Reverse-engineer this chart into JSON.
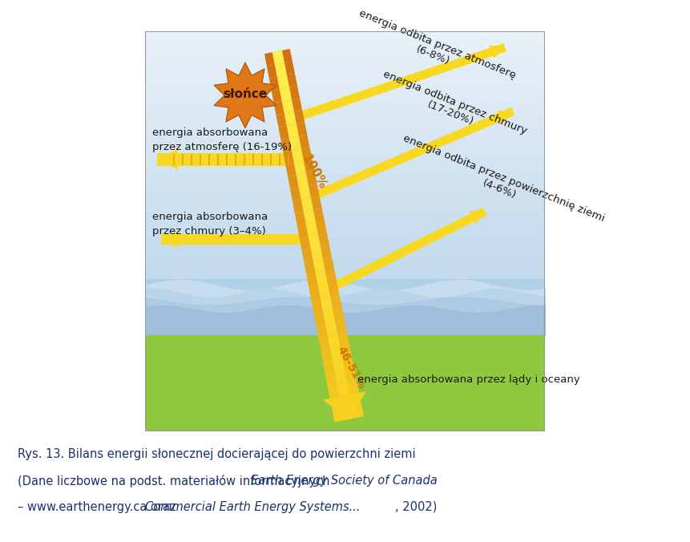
{
  "sky_top_color": "#e8f0f8",
  "sky_bottom_color": "#b8d4e8",
  "water_color": "#a0c8e0",
  "water_wave_color": "#c8dff0",
  "ground_color": "#8dc83f",
  "sun_color": "#e07818",
  "sun_inner_color": "#c86010",
  "beam_color_orange": "#e07818",
  "beam_color_yellow": "#f8d020",
  "beam_color_bright": "#ffee40",
  "arrow_color": "#f8d820",
  "text_color": "#1a1a1a",
  "caption_color": "#1a3070",
  "border_color": "#999999",
  "sun_label": "słońce",
  "label_atm_reflected": "energia odbita przez atmosferę\n(6-8%)",
  "label_cloud_reflected": "energia odbita przez chmury\n(17-20%)",
  "label_surface_reflected": "energia odbita przez powierzchnię ziemi\n(4-6%)",
  "label_atm_absorbed": "energia absorbowana\nprzez atmosferę (16-19%)",
  "label_cloud_absorbed": "energia absorbowana\nprzez chmury (3–4%)",
  "label_ground_absorbed": "energia absorbowana przez lądy i oceany",
  "label_100": "100%",
  "label_46": "46-51%",
  "caption_line1": "Rys. 13. Bilans energii słonecznej docierającej do powierzchni ziemi",
  "caption_p1": "(Dane liczbowe na podst. materiałów informacyjnych ",
  "caption_italic1": "Earth Energy Society of Canada",
  "caption_p2": "– www.earthenergy.ca oraz ",
  "caption_italic2": "Commercial Earth Energy Systems...",
  "caption_p3": ", 2002)"
}
